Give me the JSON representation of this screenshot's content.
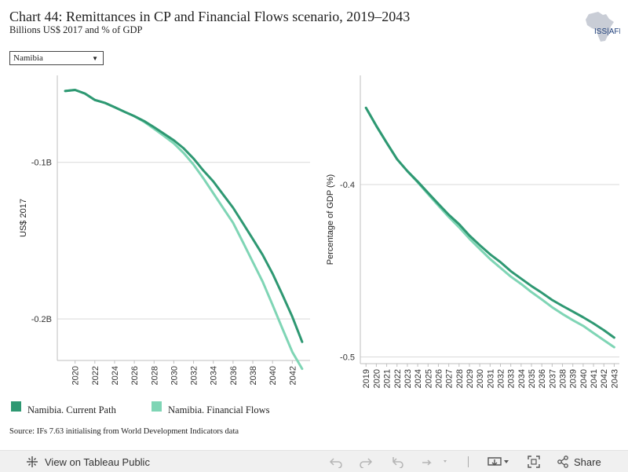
{
  "header": {
    "title": "Chart 44: Remittances in CP and Financial Flows scenario, 2019–2043",
    "subtitle": "Billions US$ 2017 and % of GDP",
    "logo_text": "ISS|AFRICA"
  },
  "filter": {
    "selected": "Namibia"
  },
  "colors": {
    "current_path": "#2e9872",
    "financial_flows": "#7fd5b5"
  },
  "chart_data": [
    {
      "type": "line",
      "title": "",
      "ylabel": "US$ 2017",
      "xlabel": "",
      "x": [
        2019,
        2020,
        2021,
        2022,
        2023,
        2024,
        2025,
        2026,
        2027,
        2028,
        2029,
        2030,
        2031,
        2032,
        2033,
        2034,
        2035,
        2036,
        2037,
        2038,
        2039,
        2040,
        2041,
        2042,
        2043
      ],
      "xlim": [
        2018.2,
        2043.8
      ],
      "ylim": [
        -0.2265,
        -0.0445
      ],
      "x_ticks": [
        2020,
        2022,
        2024,
        2026,
        2028,
        2030,
        2032,
        2034,
        2036,
        2038,
        2040,
        2042
      ],
      "y_ticks": [
        {
          "value": -0.1,
          "label": "-0.1B"
        },
        {
          "value": -0.2,
          "label": "-0.2B"
        }
      ],
      "grid": true,
      "series": [
        {
          "name": "Namibia. Current Path",
          "values": [
            -0.0545,
            -0.0538,
            -0.0561,
            -0.0602,
            -0.062,
            -0.0648,
            -0.0677,
            -0.0705,
            -0.0737,
            -0.0776,
            -0.0817,
            -0.0859,
            -0.0911,
            -0.0976,
            -0.1053,
            -0.1122,
            -0.1206,
            -0.129,
            -0.1389,
            -0.1489,
            -0.1591,
            -0.171,
            -0.1846,
            -0.1986,
            -0.2146
          ]
        },
        {
          "name": "Namibia. Financial Flows",
          "values": [
            -0.0545,
            -0.0538,
            -0.0561,
            -0.0602,
            -0.062,
            -0.0648,
            -0.0677,
            -0.0705,
            -0.0742,
            -0.0786,
            -0.0831,
            -0.0879,
            -0.0941,
            -0.1015,
            -0.1103,
            -0.1197,
            -0.1292,
            -0.1386,
            -0.151,
            -0.1636,
            -0.1762,
            -0.191,
            -0.2062,
            -0.2211,
            -0.2318
          ]
        }
      ]
    },
    {
      "type": "line",
      "title": "",
      "ylabel": "Percentage of GDP (%)",
      "xlabel": "",
      "x": [
        2019,
        2020,
        2021,
        2022,
        2023,
        2024,
        2025,
        2026,
        2027,
        2028,
        2029,
        2030,
        2031,
        2032,
        2033,
        2034,
        2035,
        2036,
        2037,
        2038,
        2039,
        2040,
        2041,
        2042,
        2043
      ],
      "xlim": [
        2018.45,
        2043.5
      ],
      "ylim": [
        -0.5039,
        -0.3367
      ],
      "x_ticks": [
        2019,
        2020,
        2021,
        2022,
        2023,
        2024,
        2025,
        2026,
        2027,
        2028,
        2029,
        2030,
        2031,
        2032,
        2033,
        2034,
        2035,
        2036,
        2037,
        2038,
        2039,
        2040,
        2041,
        2042,
        2043
      ],
      "y_ticks": [
        {
          "value": -0.4,
          "label": "-0.4"
        },
        {
          "value": -0.5,
          "label": "-0.5"
        }
      ],
      "grid": true,
      "series": [
        {
          "name": "Namibia. Current Path",
          "values": [
            -0.3555,
            -0.366,
            -0.3758,
            -0.3853,
            -0.3922,
            -0.3983,
            -0.4048,
            -0.4113,
            -0.4175,
            -0.423,
            -0.4296,
            -0.4352,
            -0.4405,
            -0.445,
            -0.4503,
            -0.4546,
            -0.4589,
            -0.4628,
            -0.467,
            -0.4704,
            -0.4737,
            -0.477,
            -0.4806,
            -0.4845,
            -0.4888
          ]
        },
        {
          "name": "Namibia. Financial Flows",
          "values": [
            -0.3555,
            -0.366,
            -0.3758,
            -0.3853,
            -0.3922,
            -0.3987,
            -0.4056,
            -0.4123,
            -0.4188,
            -0.4248,
            -0.4314,
            -0.4374,
            -0.4432,
            -0.4483,
            -0.4534,
            -0.4577,
            -0.4624,
            -0.4667,
            -0.4712,
            -0.4751,
            -0.4787,
            -0.482,
            -0.4862,
            -0.4903,
            -0.4944
          ]
        }
      ]
    }
  ],
  "legend": {
    "items": [
      {
        "label": "Namibia. Current Path",
        "color": "#2e9872"
      },
      {
        "label": "Namibia. Financial Flows",
        "color": "#7fd5b5"
      }
    ]
  },
  "source": "Source: IFs 7.63 initialising from World Development Indicators data",
  "toolbar": {
    "view_label": "View on Tableau Public",
    "share_label": "Share"
  }
}
